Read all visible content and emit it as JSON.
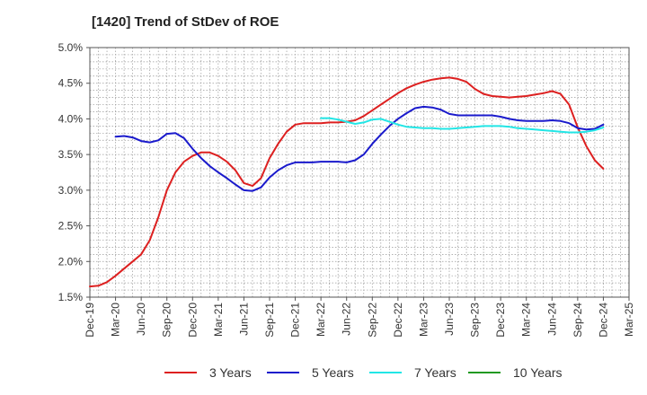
{
  "chart_data": {
    "type": "line",
    "title": "[1420]  Trend of StDev of ROE",
    "xlabel": "",
    "ylabel": "",
    "ylim": [
      1.5,
      5.0
    ],
    "yticks": [
      "1.5%",
      "2.0%",
      "2.5%",
      "3.0%",
      "3.5%",
      "4.0%",
      "4.5%",
      "5.0%"
    ],
    "xticks": [
      "Dec-19",
      "Mar-20",
      "Jun-20",
      "Sep-20",
      "Dec-20",
      "Mar-21",
      "Jun-21",
      "Sep-21",
      "Dec-21",
      "Mar-22",
      "Jun-22",
      "Sep-22",
      "Dec-22",
      "Mar-23",
      "Jun-23",
      "Sep-23",
      "Dec-23",
      "Mar-24",
      "Jun-24",
      "Sep-24",
      "Dec-24",
      "Mar-25"
    ],
    "grid": true,
    "legend_position": "bottom",
    "series": [
      {
        "name": "3 Years",
        "color": "#dd2020",
        "values": [
          [
            0,
            1.65
          ],
          [
            1,
            1.66
          ],
          [
            2,
            1.71
          ],
          [
            3,
            1.8
          ],
          [
            4,
            1.9
          ],
          [
            5,
            2.0
          ],
          [
            6,
            2.1
          ],
          [
            7,
            2.3
          ],
          [
            8,
            2.62
          ],
          [
            9,
            3.0
          ],
          [
            10,
            3.25
          ],
          [
            11,
            3.4
          ],
          [
            12,
            3.48
          ],
          [
            13,
            3.53
          ],
          [
            14,
            3.53
          ],
          [
            15,
            3.48
          ],
          [
            16,
            3.4
          ],
          [
            17,
            3.28
          ],
          [
            18,
            3.1
          ],
          [
            19,
            3.06
          ],
          [
            20,
            3.17
          ],
          [
            21,
            3.45
          ],
          [
            22,
            3.65
          ],
          [
            23,
            3.82
          ],
          [
            24,
            3.92
          ],
          [
            25,
            3.94
          ],
          [
            26,
            3.94
          ],
          [
            27,
            3.94
          ],
          [
            28,
            3.95
          ],
          [
            29,
            3.95
          ],
          [
            30,
            3.96
          ],
          [
            31,
            3.98
          ],
          [
            32,
            4.04
          ],
          [
            33,
            4.12
          ],
          [
            34,
            4.2
          ],
          [
            35,
            4.28
          ],
          [
            36,
            4.36
          ],
          [
            37,
            4.43
          ],
          [
            38,
            4.48
          ],
          [
            39,
            4.52
          ],
          [
            40,
            4.55
          ],
          [
            41,
            4.57
          ],
          [
            42,
            4.58
          ],
          [
            43,
            4.56
          ],
          [
            44,
            4.52
          ],
          [
            45,
            4.42
          ],
          [
            46,
            4.35
          ],
          [
            47,
            4.32
          ],
          [
            48,
            4.31
          ],
          [
            49,
            4.3
          ],
          [
            50,
            4.31
          ],
          [
            51,
            4.32
          ],
          [
            52,
            4.34
          ],
          [
            53,
            4.36
          ],
          [
            54,
            4.39
          ],
          [
            55,
            4.35
          ],
          [
            56,
            4.2
          ],
          [
            57,
            3.88
          ],
          [
            58,
            3.62
          ],
          [
            59,
            3.42
          ],
          [
            60,
            3.3
          ]
        ]
      },
      {
        "name": "5 Years",
        "color": "#1a1acc",
        "values": [
          [
            3,
            3.75
          ],
          [
            4,
            3.76
          ],
          [
            5,
            3.74
          ],
          [
            6,
            3.69
          ],
          [
            7,
            3.67
          ],
          [
            8,
            3.7
          ],
          [
            9,
            3.79
          ],
          [
            10,
            3.8
          ],
          [
            11,
            3.73
          ],
          [
            12,
            3.58
          ],
          [
            13,
            3.45
          ],
          [
            14,
            3.34
          ],
          [
            15,
            3.25
          ],
          [
            16,
            3.17
          ],
          [
            17,
            3.08
          ],
          [
            18,
            3.0
          ],
          [
            19,
            2.99
          ],
          [
            20,
            3.04
          ],
          [
            21,
            3.18
          ],
          [
            22,
            3.28
          ],
          [
            23,
            3.35
          ],
          [
            24,
            3.39
          ],
          [
            25,
            3.39
          ],
          [
            26,
            3.39
          ],
          [
            27,
            3.4
          ],
          [
            28,
            3.4
          ],
          [
            29,
            3.4
          ],
          [
            30,
            3.39
          ],
          [
            31,
            3.42
          ],
          [
            32,
            3.5
          ],
          [
            33,
            3.65
          ],
          [
            34,
            3.78
          ],
          [
            35,
            3.9
          ],
          [
            36,
            4.0
          ],
          [
            37,
            4.08
          ],
          [
            38,
            4.15
          ],
          [
            39,
            4.17
          ],
          [
            40,
            4.16
          ],
          [
            41,
            4.13
          ],
          [
            42,
            4.07
          ],
          [
            43,
            4.05
          ],
          [
            44,
            4.05
          ],
          [
            45,
            4.05
          ],
          [
            46,
            4.05
          ],
          [
            47,
            4.05
          ],
          [
            48,
            4.03
          ],
          [
            49,
            4.0
          ],
          [
            50,
            3.98
          ],
          [
            51,
            3.97
          ],
          [
            52,
            3.97
          ],
          [
            53,
            3.97
          ],
          [
            54,
            3.98
          ],
          [
            55,
            3.97
          ],
          [
            56,
            3.94
          ],
          [
            57,
            3.87
          ],
          [
            58,
            3.85
          ],
          [
            59,
            3.86
          ],
          [
            60,
            3.92
          ]
        ]
      },
      {
        "name": "7 Years",
        "color": "#22e6e6",
        "values": [
          [
            27,
            4.01
          ],
          [
            28,
            4.01
          ],
          [
            29,
            3.99
          ],
          [
            30,
            3.96
          ],
          [
            31,
            3.93
          ],
          [
            32,
            3.95
          ],
          [
            33,
            3.99
          ],
          [
            34,
            4.0
          ],
          [
            35,
            3.96
          ],
          [
            36,
            3.92
          ],
          [
            37,
            3.89
          ],
          [
            38,
            3.88
          ],
          [
            39,
            3.87
          ],
          [
            40,
            3.87
          ],
          [
            41,
            3.86
          ],
          [
            42,
            3.86
          ],
          [
            43,
            3.87
          ],
          [
            44,
            3.88
          ],
          [
            45,
            3.89
          ],
          [
            46,
            3.9
          ],
          [
            47,
            3.9
          ],
          [
            48,
            3.9
          ],
          [
            49,
            3.89
          ],
          [
            50,
            3.87
          ],
          [
            51,
            3.86
          ],
          [
            52,
            3.85
          ],
          [
            53,
            3.84
          ],
          [
            54,
            3.83
          ],
          [
            55,
            3.82
          ],
          [
            56,
            3.81
          ],
          [
            57,
            3.81
          ],
          [
            58,
            3.82
          ],
          [
            59,
            3.84
          ],
          [
            60,
            3.88
          ]
        ]
      },
      {
        "name": "10 Years",
        "color": "#229922",
        "values": []
      }
    ]
  }
}
